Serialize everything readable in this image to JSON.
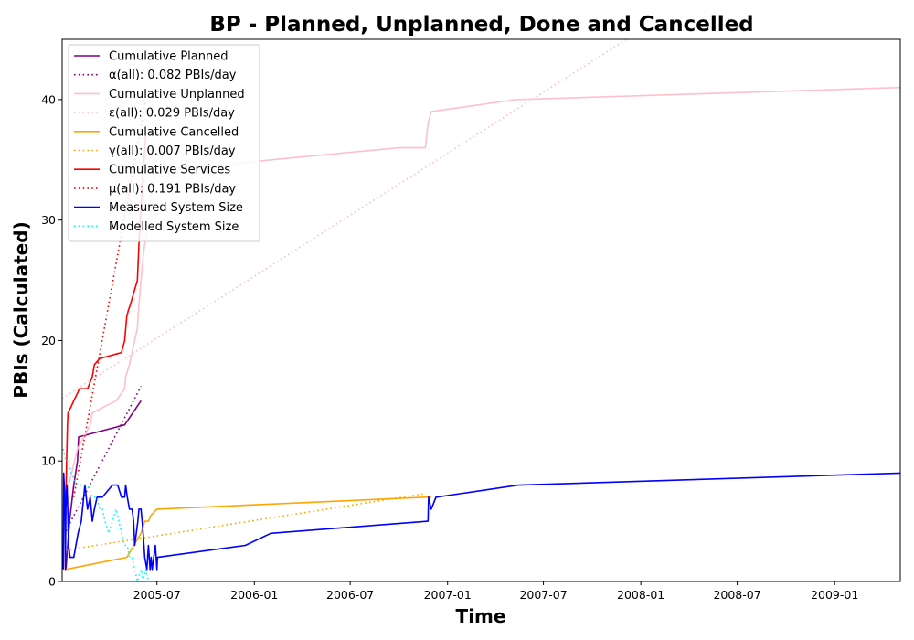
{
  "chart_data": {
    "type": "line",
    "title": "BP - Planned, Unplanned, Done  and Cancelled",
    "xlabel": "Time",
    "ylabel": "PBIs (Calculated)",
    "xlim": [
      "2005-01-03",
      "2009-05-05"
    ],
    "ylim": [
      0,
      45
    ],
    "x_ticks": [
      "2005-07",
      "2006-01",
      "2006-07",
      "2007-01",
      "2007-07",
      "2008-01",
      "2008-07",
      "2009-01"
    ],
    "y_ticks": [
      0,
      10,
      20,
      30,
      40
    ],
    "grid": false,
    "legend_position": "top-left",
    "series": [
      {
        "name": "Cumulative Planned",
        "style": "solid",
        "color": "#800080",
        "x": [
          "2005-01-10",
          "2005-01-17",
          "2005-01-25",
          "2005-02-01",
          "2005-02-02",
          "2005-02-03",
          "2005-05-01",
          "2005-06-01"
        ],
        "y": [
          1,
          5,
          8,
          10,
          11,
          12,
          13,
          15
        ]
      },
      {
        "name": "α(all): 0.082 PBIs/day",
        "style": "dotted",
        "color": "#800080",
        "x": [
          "2005-01-10",
          "2005-06-01"
        ],
        "y": [
          4.2,
          16.2
        ]
      },
      {
        "name": "Cumulative Unplanned",
        "style": "solid",
        "color": "#ffc0cb",
        "x": [
          "2005-01-10",
          "2005-02-01",
          "2005-02-25",
          "2005-03-01",
          "2005-04-15",
          "2005-05-01",
          "2005-05-03",
          "2005-05-10",
          "2005-05-15",
          "2005-05-20",
          "2005-05-25",
          "2005-05-28",
          "2005-06-01",
          "2005-06-05",
          "2005-06-08",
          "2005-06-12",
          "2005-06-15",
          "2005-06-18",
          "2005-06-20",
          "2005-06-22",
          "2005-07-01",
          "2006-02-01",
          "2006-10-01",
          "2006-11-20",
          "2006-11-25",
          "2006-12-01",
          "2007-05-10",
          "2009-05-05"
        ],
        "y": [
          7,
          11,
          13,
          14,
          15,
          16,
          17,
          18,
          19,
          20,
          21,
          23,
          25,
          27,
          28,
          29,
          30,
          31,
          32,
          33,
          34,
          35,
          36,
          36,
          38,
          39,
          40,
          41
        ]
      },
      {
        "name": "ε(all): 0.029 PBIs/day",
        "style": "dotted",
        "color": "#ffc0cb",
        "x": [
          "2005-01-03",
          "2007-12-05"
        ],
        "y": [
          15.2,
          45
        ]
      },
      {
        "name": "Cumulative Cancelled",
        "style": "solid",
        "color": "#ffa500",
        "x": [
          "2005-01-10",
          "2005-05-05",
          "2005-06-01",
          "2005-06-08",
          "2005-06-15",
          "2005-06-20",
          "2005-07-01",
          "2006-11-20",
          "2006-11-21",
          "2006-12-01"
        ],
        "y": [
          1,
          2,
          4,
          5,
          5,
          5.5,
          6,
          7,
          7,
          7
        ]
      },
      {
        "name": "γ(all): 0.007 PBIs/day",
        "style": "dotted",
        "color": "#ffa500",
        "x": [
          "2005-01-10",
          "2006-11-20"
        ],
        "y": [
          2.6,
          7.3
        ]
      },
      {
        "name": "Cumulative Services",
        "style": "solid",
        "color": "#ff0000",
        "x": [
          "2005-01-10",
          "2005-01-11",
          "2005-01-12",
          "2005-01-13",
          "2005-01-14",
          "2005-01-20",
          "2005-01-25",
          "2005-02-05",
          "2005-02-20",
          "2005-03-01",
          "2005-03-05",
          "2005-03-15",
          "2005-04-25",
          "2005-05-01",
          "2005-05-05",
          "2005-05-08",
          "2005-05-12",
          "2005-05-25",
          "2005-05-28",
          "2005-06-01",
          "2005-06-05",
          "2005-06-10"
        ],
        "y": [
          7,
          9,
          11,
          13,
          14,
          14.5,
          15,
          16,
          16,
          17,
          18,
          18.5,
          19,
          20,
          22,
          22.5,
          23,
          25,
          28,
          31,
          34,
          37
        ]
      },
      {
        "name": "μ(all): 0.191 PBIs/day",
        "style": "dotted",
        "color": "#ff0000",
        "x": [
          "2005-01-25",
          "2005-06-10"
        ],
        "y": [
          7,
          40
        ]
      },
      {
        "name": "Measured System Size",
        "style": "solid",
        "color": "#0000ff",
        "x": [
          "2005-01-05",
          "2005-01-06",
          "2005-01-08",
          "2005-01-09",
          "2005-01-10",
          "2005-01-12",
          "2005-01-13",
          "2005-01-15",
          "2005-01-18",
          "2005-01-25",
          "2005-02-02",
          "2005-02-08",
          "2005-02-15",
          "2005-02-20",
          "2005-02-25",
          "2005-03-01",
          "2005-03-05",
          "2005-03-10",
          "2005-03-20",
          "2005-04-08",
          "2005-04-18",
          "2005-04-25",
          "2005-05-01",
          "2005-05-03",
          "2005-05-06",
          "2005-05-10",
          "2005-05-15",
          "2005-05-18",
          "2005-05-20",
          "2005-05-23",
          "2005-05-26",
          "2005-05-28",
          "2005-06-01",
          "2005-06-03",
          "2005-06-05",
          "2005-06-08",
          "2005-06-12",
          "2005-06-15",
          "2005-06-18",
          "2005-06-20",
          "2005-06-22",
          "2005-06-25",
          "2005-06-28",
          "2005-07-01",
          "2005-07-02",
          "2005-12-15",
          "2006-02-01",
          "2006-11-25",
          "2006-11-26",
          "2006-12-01",
          "2006-12-10",
          "2007-05-15",
          "2009-05-05"
        ],
        "y": [
          1,
          9,
          7,
          1,
          6,
          8,
          7,
          3,
          2,
          2,
          4,
          5,
          8,
          6,
          7,
          5,
          6,
          7,
          7,
          8,
          8,
          7,
          7,
          8,
          7,
          6,
          6,
          5,
          3,
          4,
          5,
          6,
          6,
          5,
          4,
          2,
          1,
          3,
          1,
          2,
          1,
          2,
          3,
          1,
          2,
          3,
          4,
          5,
          7,
          6,
          7,
          8,
          9
        ]
      },
      {
        "name": "Modelled System Size",
        "style": "dotted",
        "color": "#00ffff",
        "x": [
          "2005-01-05",
          "2005-01-10",
          "2005-01-15",
          "2005-01-20",
          "2005-02-01",
          "2005-02-10",
          "2005-02-20",
          "2005-03-01",
          "2005-03-10",
          "2005-03-15",
          "2005-03-20",
          "2005-03-25",
          "2005-04-01",
          "2005-04-08",
          "2005-04-15",
          "2005-04-20",
          "2005-04-25",
          "2005-05-01",
          "2005-05-06",
          "2005-05-10",
          "2005-05-15",
          "2005-05-20",
          "2005-05-25",
          "2005-06-01",
          "2005-06-05",
          "2005-06-10",
          "2005-06-15",
          "2005-07-01",
          "2009-05-05"
        ],
        "y": [
          11,
          10,
          10,
          9,
          8,
          8,
          8,
          7,
          7,
          6,
          6,
          5,
          4,
          5,
          6,
          5,
          4,
          3,
          3,
          2,
          2,
          1,
          0,
          1,
          0,
          1,
          0,
          0,
          0
        ]
      }
    ]
  }
}
